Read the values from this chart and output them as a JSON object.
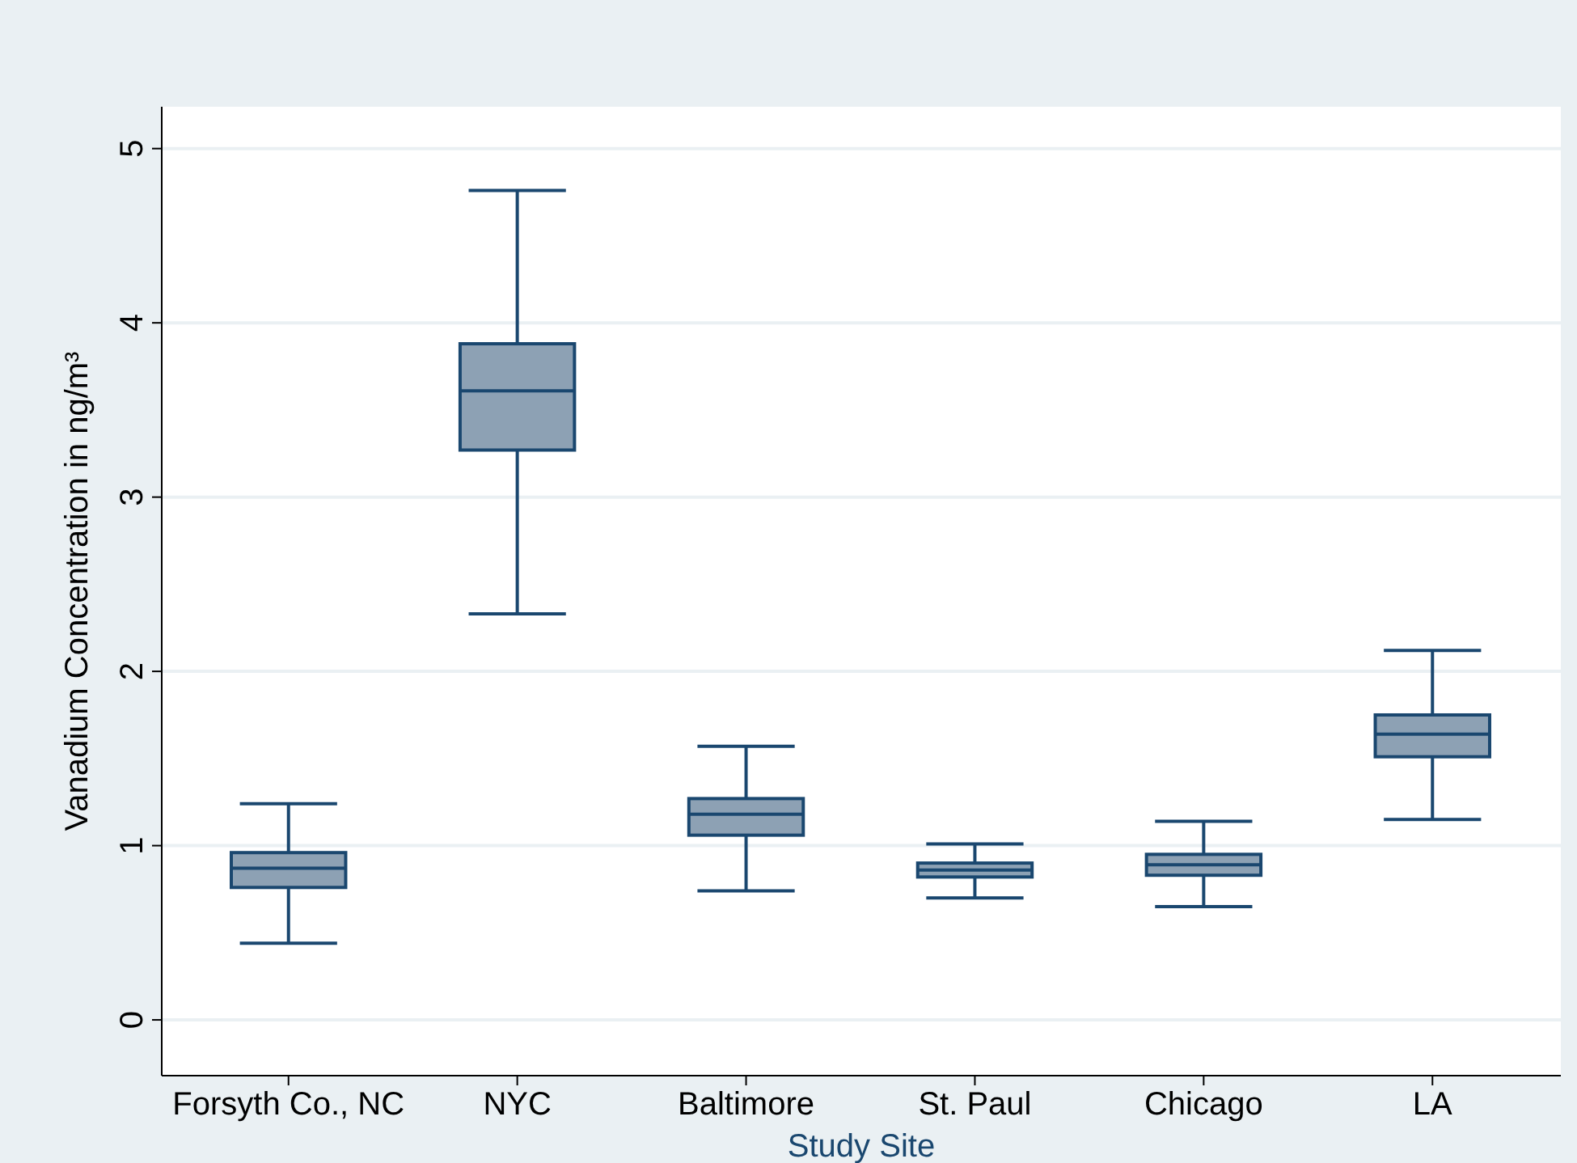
{
  "chart_data": {
    "type": "box",
    "xlabel": "Study Site",
    "ylabel": "Vanadium Concentration in ng/m³",
    "categories": [
      "Forsyth Co., NC",
      "NYC",
      "Baltimore",
      "St. Paul",
      "Chicago",
      "LA"
    ],
    "boxes": [
      {
        "low": 0.44,
        "q1": 0.76,
        "median": 0.87,
        "q3": 0.96,
        "high": 1.24
      },
      {
        "low": 2.33,
        "q1": 3.27,
        "median": 3.61,
        "q3": 3.88,
        "high": 4.76
      },
      {
        "low": 0.74,
        "q1": 1.06,
        "median": 1.18,
        "q3": 1.27,
        "high": 1.57
      },
      {
        "low": 0.7,
        "q1": 0.82,
        "median": 0.86,
        "q3": 0.9,
        "high": 1.01
      },
      {
        "low": 0.65,
        "q1": 0.83,
        "median": 0.89,
        "q3": 0.95,
        "high": 1.14
      },
      {
        "low": 1.15,
        "q1": 1.51,
        "median": 1.64,
        "q3": 1.75,
        "high": 2.12
      }
    ],
    "color": "#8da1b4",
    "ylim": [
      -0.32,
      5.24
    ],
    "yticks": [
      0,
      1,
      2,
      3,
      4,
      5
    ],
    "grid": "y"
  }
}
